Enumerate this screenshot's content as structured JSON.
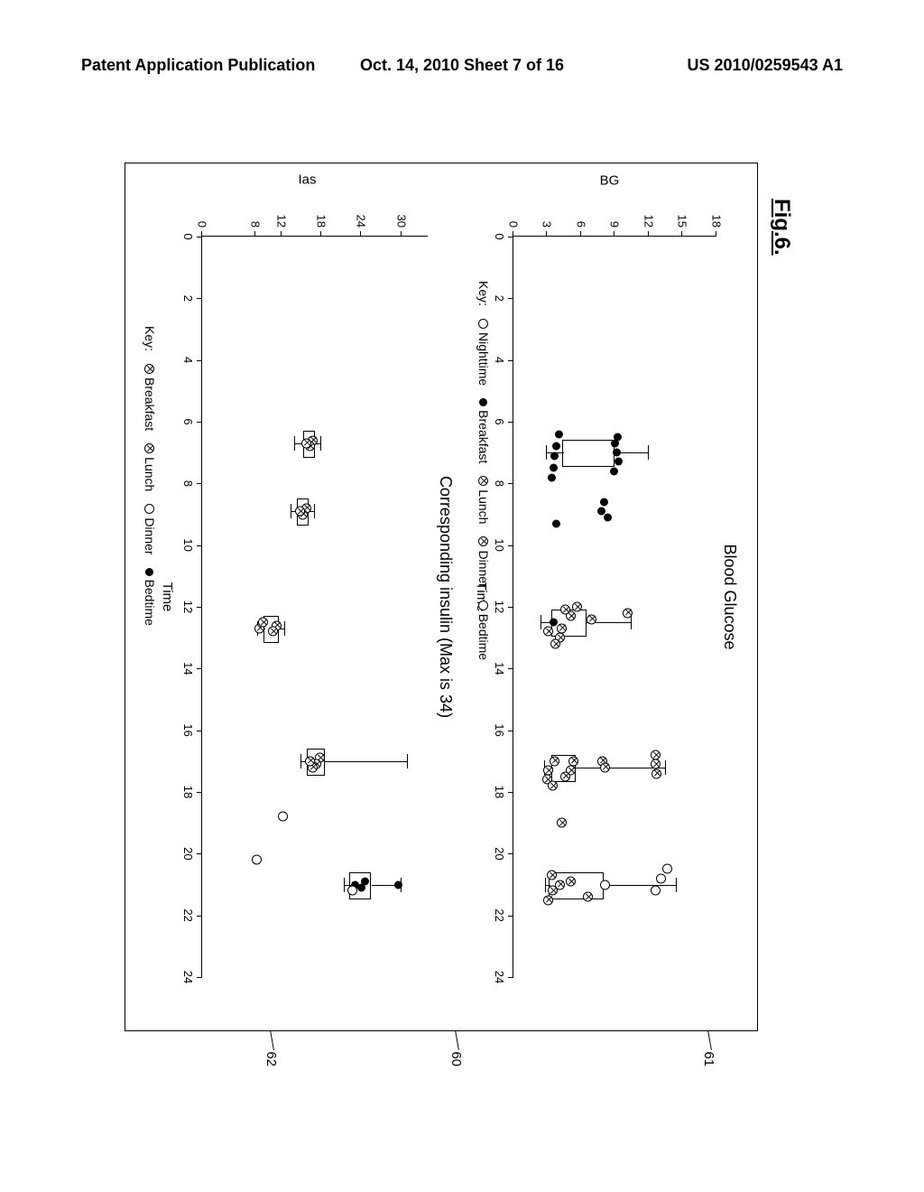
{
  "header": {
    "left": "Patent Application Publication",
    "center": "Oct. 14, 2010  Sheet 7 of 16",
    "right": "US 2010/0259543 A1"
  },
  "figure": {
    "label": "Fig.6.",
    "callouts": {
      "c61": "61",
      "c60": "60",
      "c62": "62"
    }
  },
  "chart1": {
    "title": "Blood Glucose",
    "ylabel": "BG",
    "xlabel": "Time",
    "ylim": [
      0,
      18
    ],
    "yticks": [
      0,
      3,
      6,
      9,
      12,
      15,
      18
    ],
    "xlim": [
      0,
      24
    ],
    "xticks": [
      0,
      2,
      4,
      6,
      8,
      10,
      12,
      14,
      16,
      18,
      20,
      22,
      24
    ],
    "key_label": "Key:",
    "key": [
      {
        "marker": "open",
        "label": "Nighttime"
      },
      {
        "marker": "filled",
        "label": "Breakfast"
      },
      {
        "marker": "crossed",
        "label": "Lunch"
      },
      {
        "marker": "crossed",
        "label": "Dinner"
      },
      {
        "marker": "open",
        "label": "Bedtime"
      }
    ],
    "boxes": [
      {
        "x": 7.0,
        "q1": 4.5,
        "q3": 9.0,
        "wlo": 3.0,
        "whi": 12.0
      },
      {
        "x": 12.5,
        "q1": 3.5,
        "q3": 6.5,
        "wlo": 2.5,
        "whi": 10.5
      },
      {
        "x": 17.2,
        "q1": 3.5,
        "q3": 5.5,
        "wlo": 2.8,
        "whi": 13.5
      },
      {
        "x": 21.0,
        "q1": 3.3,
        "q3": 8.0,
        "wlo": 2.9,
        "whi": 14.5
      }
    ],
    "points": [
      {
        "x": 6.5,
        "y": 9.2,
        "m": "filled"
      },
      {
        "x": 6.7,
        "y": 9.0,
        "m": "filled"
      },
      {
        "x": 7.0,
        "y": 9.1,
        "m": "filled"
      },
      {
        "x": 7.3,
        "y": 9.3,
        "m": "filled"
      },
      {
        "x": 7.6,
        "y": 8.9,
        "m": "filled"
      },
      {
        "x": 6.4,
        "y": 4.0,
        "m": "filled"
      },
      {
        "x": 6.8,
        "y": 3.8,
        "m": "filled"
      },
      {
        "x": 7.1,
        "y": 3.6,
        "m": "filled"
      },
      {
        "x": 7.5,
        "y": 3.5,
        "m": "filled"
      },
      {
        "x": 7.8,
        "y": 3.4,
        "m": "filled"
      },
      {
        "x": 8.6,
        "y": 8.0,
        "m": "filled"
      },
      {
        "x": 8.9,
        "y": 7.8,
        "m": "filled"
      },
      {
        "x": 9.1,
        "y": 8.3,
        "m": "filled"
      },
      {
        "x": 9.3,
        "y": 3.8,
        "m": "filled"
      },
      {
        "x": 12.0,
        "y": 5.5,
        "m": "crossed"
      },
      {
        "x": 12.3,
        "y": 5.0,
        "m": "crossed"
      },
      {
        "x": 12.1,
        "y": 4.5,
        "m": "crossed"
      },
      {
        "x": 12.5,
        "y": 3.5,
        "m": "filled"
      },
      {
        "x": 12.7,
        "y": 4.2,
        "m": "crossed"
      },
      {
        "x": 13.0,
        "y": 4.0,
        "m": "crossed"
      },
      {
        "x": 13.2,
        "y": 3.6,
        "m": "crossed"
      },
      {
        "x": 12.8,
        "y": 3.0,
        "m": "crossed"
      },
      {
        "x": 12.2,
        "y": 10.0,
        "m": "crossed"
      },
      {
        "x": 12.4,
        "y": 6.8,
        "m": "crossed"
      },
      {
        "x": 16.8,
        "y": 12.5,
        "m": "crossed"
      },
      {
        "x": 17.1,
        "y": 12.5,
        "m": "crossed"
      },
      {
        "x": 17.4,
        "y": 12.6,
        "m": "crossed"
      },
      {
        "x": 17.0,
        "y": 7.8,
        "m": "crossed"
      },
      {
        "x": 17.2,
        "y": 8.0,
        "m": "crossed"
      },
      {
        "x": 17.0,
        "y": 5.2,
        "m": "crossed"
      },
      {
        "x": 17.3,
        "y": 5.0,
        "m": "crossed"
      },
      {
        "x": 17.5,
        "y": 4.5,
        "m": "crossed"
      },
      {
        "x": 17.0,
        "y": 3.5,
        "m": "crossed"
      },
      {
        "x": 17.3,
        "y": 3.0,
        "m": "crossed"
      },
      {
        "x": 17.6,
        "y": 2.9,
        "m": "crossed"
      },
      {
        "x": 17.8,
        "y": 3.4,
        "m": "crossed"
      },
      {
        "x": 19.0,
        "y": 4.2,
        "m": "crossed"
      },
      {
        "x": 20.5,
        "y": 13.5,
        "m": "open"
      },
      {
        "x": 20.8,
        "y": 13.0,
        "m": "open"
      },
      {
        "x": 21.2,
        "y": 12.5,
        "m": "open"
      },
      {
        "x": 21.0,
        "y": 8.0,
        "m": "open"
      },
      {
        "x": 21.4,
        "y": 6.5,
        "m": "crossed"
      },
      {
        "x": 20.9,
        "y": 5.0,
        "m": "crossed"
      },
      {
        "x": 21.2,
        "y": 3.4,
        "m": "crossed"
      },
      {
        "x": 20.7,
        "y": 3.3,
        "m": "crossed"
      },
      {
        "x": 21.5,
        "y": 3.0,
        "m": "crossed"
      },
      {
        "x": 21.0,
        "y": 4.0,
        "m": "crossed"
      }
    ]
  },
  "chart2": {
    "title": "Corresponding insulin (Max is 34)",
    "ylabel": "Ias",
    "xlabel": "Time",
    "ylim": [
      0,
      34
    ],
    "yticks": [
      0,
      8,
      12,
      18,
      24,
      30
    ],
    "xlim": [
      0,
      24
    ],
    "xticks": [
      0,
      2,
      4,
      6,
      8,
      10,
      12,
      14,
      16,
      18,
      20,
      22,
      24
    ],
    "key_label": "Key:",
    "key": [
      {
        "marker": "crossed",
        "label": "Breakfast"
      },
      {
        "marker": "crossed",
        "label": "Lunch"
      },
      {
        "marker": "open",
        "label": "Dinner"
      },
      {
        "marker": "filled",
        "label": "Bedtime"
      }
    ],
    "boxes": [
      {
        "x": 6.7,
        "q1": 15.5,
        "q3": 17.0,
        "wlo": 14.0,
        "whi": 18.0
      },
      {
        "x": 8.9,
        "q1": 14.5,
        "q3": 16.0,
        "wlo": 13.5,
        "whi": 17.0
      },
      {
        "x": 12.7,
        "q1": 9.5,
        "q3": 11.5,
        "wlo": 8.5,
        "whi": 12.5
      },
      {
        "x": 17.0,
        "q1": 16.0,
        "q3": 18.5,
        "wlo": 15.0,
        "whi": 31.0
      },
      {
        "x": 21.0,
        "q1": 22.5,
        "q3": 25.5,
        "wlo": 21.5,
        "whi": 30.0
      }
    ],
    "points": [
      {
        "x": 6.6,
        "y": 16.5,
        "m": "crossed"
      },
      {
        "x": 6.8,
        "y": 16.0,
        "m": "crossed"
      },
      {
        "x": 6.7,
        "y": 15.5,
        "m": "crossed"
      },
      {
        "x": 8.8,
        "y": 15.5,
        "m": "crossed"
      },
      {
        "x": 9.0,
        "y": 15.0,
        "m": "crossed"
      },
      {
        "x": 8.9,
        "y": 14.5,
        "m": "crossed"
      },
      {
        "x": 12.6,
        "y": 11.0,
        "m": "crossed"
      },
      {
        "x": 12.8,
        "y": 10.5,
        "m": "crossed"
      },
      {
        "x": 12.7,
        "y": 8.5,
        "m": "crossed"
      },
      {
        "x": 12.5,
        "y": 9.0,
        "m": "crossed"
      },
      {
        "x": 16.9,
        "y": 17.5,
        "m": "crossed"
      },
      {
        "x": 17.1,
        "y": 17.0,
        "m": "crossed"
      },
      {
        "x": 17.2,
        "y": 16.5,
        "m": "crossed"
      },
      {
        "x": 17.0,
        "y": 16.0,
        "m": "crossed"
      },
      {
        "x": 18.8,
        "y": 12.0,
        "m": "open"
      },
      {
        "x": 20.9,
        "y": 24.5,
        "m": "filled"
      },
      {
        "x": 21.1,
        "y": 24.0,
        "m": "filled"
      },
      {
        "x": 21.0,
        "y": 23.0,
        "m": "filled"
      },
      {
        "x": 21.2,
        "y": 22.5,
        "m": "open"
      },
      {
        "x": 21.0,
        "y": 29.5,
        "m": "filled"
      },
      {
        "x": 20.2,
        "y": 8.0,
        "m": "open"
      }
    ]
  },
  "colors": {
    "fg": "#000000",
    "bg": "#ffffff"
  }
}
